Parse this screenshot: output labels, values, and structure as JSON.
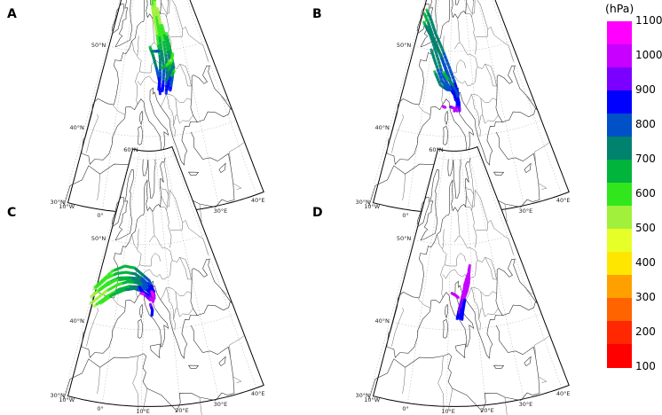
{
  "colorbar": {
    "unit": "(hPa)",
    "levels": [
      "1100",
      "1000",
      "900",
      "800",
      "700",
      "600",
      "500",
      "400",
      "300",
      "200",
      "100"
    ],
    "colors": [
      "#ff00ff",
      "#c800ff",
      "#7b00ff",
      "#0000ff",
      "#0050c8",
      "#00826e",
      "#00b43c",
      "#32e61e",
      "#a0f03c",
      "#e6ff28",
      "#ffe600",
      "#ffa000",
      "#ff6400",
      "#ff2800",
      "#ff0000"
    ]
  },
  "map_labels": {
    "lat60": "60°N",
    "lat50": "50°N",
    "lat40": "40°N",
    "lat30": "30°N",
    "lon10w": "10°W",
    "lon0": "0°",
    "lon10e": "10°E",
    "lon20e": "20°E",
    "lon30e": "30°E",
    "lon40e": "40°E"
  },
  "panels": [
    {
      "label": "A"
    },
    {
      "label": "B"
    },
    {
      "label": "C"
    },
    {
      "label": "D"
    }
  ]
}
